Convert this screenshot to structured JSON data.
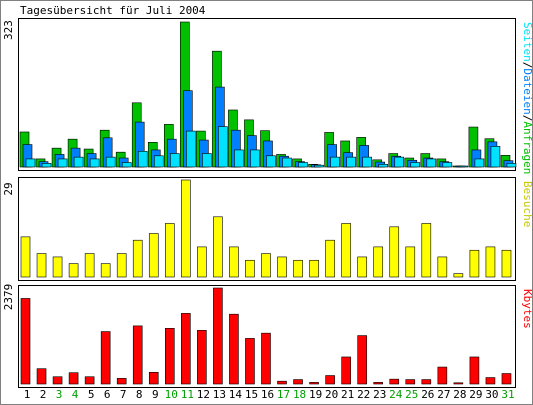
{
  "title": "Tagesübersicht für Juli 2004",
  "colors": {
    "hits": "#00c000",
    "files": "#0080ff",
    "pages": "#00e0ff",
    "visits": "#ffff00",
    "kbytes": "#ff0000",
    "weekend": "#00a000",
    "frame": "#000000"
  },
  "chart_data": [
    {
      "type": "bar",
      "panel": "top",
      "ymax_label": "323",
      "legend": [
        "Seiten",
        "Dateien",
        "Anfragen"
      ],
      "legend_sep": "/",
      "categories": [
        "1",
        "2",
        "3",
        "4",
        "5",
        "6",
        "7",
        "8",
        "9",
        "10",
        "11",
        "12",
        "13",
        "14",
        "15",
        "16",
        "17",
        "18",
        "19",
        "20",
        "21",
        "22",
        "23",
        "24",
        "25",
        "26",
        "27",
        "28",
        "29",
        "30",
        "31"
      ],
      "series": [
        {
          "name": "Anfragen",
          "values": [
            78,
            18,
            42,
            62,
            40,
            82,
            33,
            143,
            55,
            95,
            323,
            80,
            258,
            127,
            105,
            81,
            28,
            18,
            6,
            77,
            58,
            66,
            16,
            30,
            20,
            30,
            18,
            2,
            89,
            63,
            26
          ]
        },
        {
          "name": "Dateien",
          "values": [
            50,
            12,
            28,
            42,
            30,
            65,
            20,
            100,
            38,
            62,
            170,
            60,
            178,
            82,
            70,
            58,
            24,
            12,
            5,
            50,
            32,
            48,
            11,
            24,
            15,
            20,
            12,
            1,
            38,
            56,
            14
          ]
        },
        {
          "name": "Seiten",
          "values": [
            18,
            8,
            18,
            22,
            18,
            22,
            10,
            35,
            25,
            30,
            80,
            30,
            90,
            38,
            38,
            25,
            20,
            10,
            4,
            22,
            22,
            22,
            6,
            22,
            10,
            18,
            10,
            0,
            18,
            46,
            8
          ]
        }
      ]
    },
    {
      "type": "bar",
      "panel": "middle",
      "ymax_label": "29",
      "legend": [
        "Besuche"
      ],
      "categories": [
        "1",
        "2",
        "3",
        "4",
        "5",
        "6",
        "7",
        "8",
        "9",
        "10",
        "11",
        "12",
        "13",
        "14",
        "15",
        "16",
        "17",
        "18",
        "19",
        "20",
        "21",
        "22",
        "23",
        "24",
        "25",
        "26",
        "27",
        "28",
        "29",
        "30",
        "31"
      ],
      "series": [
        {
          "name": "Besuche",
          "values": [
            12,
            7,
            6,
            4,
            7,
            4,
            7,
            11,
            13,
            16,
            29,
            9,
            18,
            9,
            5,
            7,
            6,
            5,
            5,
            11,
            16,
            6,
            9,
            15,
            9,
            16,
            6,
            1,
            8,
            9,
            8
          ]
        }
      ]
    },
    {
      "type": "bar",
      "panel": "bottom",
      "ymax_label": "2379",
      "legend": [
        "Kbytes"
      ],
      "categories": [
        "1",
        "2",
        "3",
        "4",
        "5",
        "6",
        "7",
        "8",
        "9",
        "10",
        "11",
        "12",
        "13",
        "14",
        "15",
        "16",
        "17",
        "18",
        "19",
        "20",
        "21",
        "22",
        "23",
        "24",
        "25",
        "26",
        "27",
        "28",
        "29",
        "30",
        "31"
      ],
      "series": [
        {
          "name": "Kbytes",
          "values": [
            2120,
            380,
            180,
            280,
            180,
            1300,
            140,
            1440,
            290,
            1380,
            1750,
            1330,
            2379,
            1730,
            1130,
            1260,
            70,
            110,
            40,
            210,
            670,
            1200,
            40,
            120,
            110,
            110,
            420,
            30,
            670,
            160,
            260
          ]
        }
      ],
      "weekend_days": [
        3,
        4,
        10,
        11,
        17,
        18,
        24,
        25,
        31
      ]
    }
  ]
}
